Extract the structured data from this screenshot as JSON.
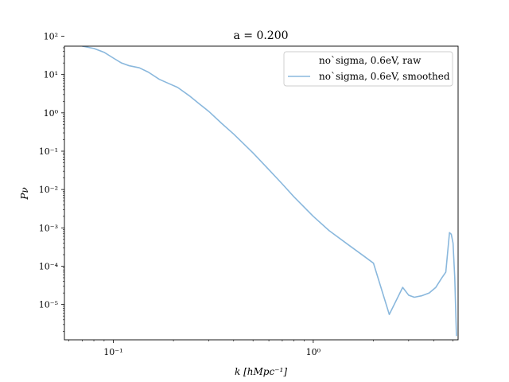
{
  "chart_data": {
    "type": "line",
    "title": "a = 0.200",
    "xlabel": "k [hMpc⁻¹]",
    "ylabel": "Pν",
    "x_scale": "log",
    "y_scale": "log",
    "xlim": [
      0.057,
      5.3
    ],
    "ylim": [
      1.2e-06,
      55
    ],
    "grid": false,
    "legend_position": "top-right",
    "x_ticks": [
      {
        "value": 0.1,
        "label": "10⁻¹"
      },
      {
        "value": 1,
        "label": "10⁰"
      }
    ],
    "y_ticks": [
      {
        "value": 1e-05,
        "label": "10⁻⁵"
      },
      {
        "value": 0.0001,
        "label": "10⁻⁴"
      },
      {
        "value": 0.001,
        "label": "10⁻³"
      },
      {
        "value": 0.01,
        "label": "10⁻²"
      },
      {
        "value": 0.1,
        "label": "10⁻¹"
      },
      {
        "value": 1,
        "label": "10⁰"
      },
      {
        "value": 10,
        "label": "10¹"
      },
      {
        "value": 100,
        "label": "10²"
      }
    ],
    "series": [
      {
        "name": "no`sigma, 0.6eV, raw",
        "color": "#ffffff",
        "x": [],
        "y": []
      },
      {
        "name": "no`sigma, 0.6eV, smoothed",
        "color": "#8ab8dd",
        "x": [
          0.07,
          0.08,
          0.09,
          0.1,
          0.11,
          0.12,
          0.135,
          0.15,
          0.17,
          0.19,
          0.21,
          0.24,
          0.27,
          0.3,
          0.35,
          0.4,
          0.5,
          0.6,
          0.7,
          0.8,
          1.0,
          1.2,
          1.5,
          1.8,
          2.0,
          2.4,
          2.8,
          3.0,
          3.2,
          3.5,
          3.8,
          4.1,
          4.4,
          4.6,
          4.8,
          4.9,
          5.0,
          5.1,
          5.2
        ],
        "y": [
          55,
          48,
          38,
          27,
          20,
          17,
          15,
          11.5,
          7.5,
          5.8,
          4.6,
          2.8,
          1.7,
          1.1,
          0.52,
          0.28,
          0.09,
          0.033,
          0.014,
          0.0065,
          0.002,
          0.00085,
          0.00036,
          0.00018,
          0.00012,
          5.5e-06,
          2.8e-05,
          1.75e-05,
          1.55e-05,
          1.7e-05,
          2e-05,
          2.8e-05,
          5e-05,
          7e-05,
          0.00075,
          0.00068,
          0.0004,
          5e-05,
          1.5e-06
        ]
      }
    ]
  }
}
